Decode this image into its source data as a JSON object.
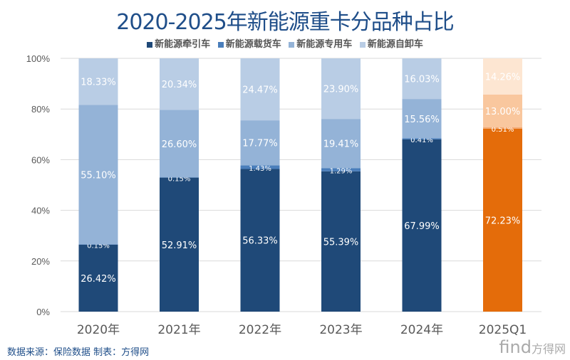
{
  "chart_data": {
    "type": "bar",
    "stacked": true,
    "title": "2020-2025年新能源重卡分品种占比",
    "categories": [
      "2020年",
      "2021年",
      "2022年",
      "2023年",
      "2024年",
      "2025Q1"
    ],
    "series": [
      {
        "name": "新能源牵引车",
        "color": "#1F4978",
        "highlight_color": "#E46C0A",
        "values": [
          26.42,
          52.91,
          56.33,
          55.39,
          67.99,
          72.23
        ]
      },
      {
        "name": "新能源载货车",
        "color": "#4A7EBB",
        "highlight_color": "#F4A46A",
        "values": [
          0.15,
          0.15,
          1.43,
          1.29,
          0.41,
          0.51
        ]
      },
      {
        "name": "新能源专用车",
        "color": "#94B3D7",
        "highlight_color": "#F9C79E",
        "values": [
          55.1,
          26.6,
          17.77,
          19.41,
          15.56,
          13.0
        ]
      },
      {
        "name": "新能源自卸车",
        "color": "#B9CDE5",
        "highlight_color": "#FDE6D2",
        "values": [
          18.33,
          20.34,
          24.47,
          23.9,
          16.03,
          14.26
        ]
      }
    ],
    "data_labels": [
      [
        "26.42%",
        "52.91%",
        "56.33%",
        "55.39%",
        "67.99%",
        "72.23%"
      ],
      [
        "0.15%",
        "0.15%",
        "1.43%",
        "1.29%",
        "0.41%",
        "0.51%"
      ],
      [
        "55.10%",
        "26.60%",
        "17.77%",
        "19.41%",
        "15.56%",
        "13.00%"
      ],
      [
        "18.33%",
        "20.34%",
        "24.47%",
        "23.90%",
        "16.03%",
        "14.26%"
      ]
    ],
    "yticks": [
      "0%",
      "20%",
      "40%",
      "60%",
      "80%",
      "100%"
    ],
    "ylim": [
      0,
      100
    ],
    "grid": true,
    "legend": "top"
  },
  "footer": {
    "source": "数据来源：保险数据  制表：方得网",
    "logo": "find",
    "logo_cn": "方得网"
  }
}
